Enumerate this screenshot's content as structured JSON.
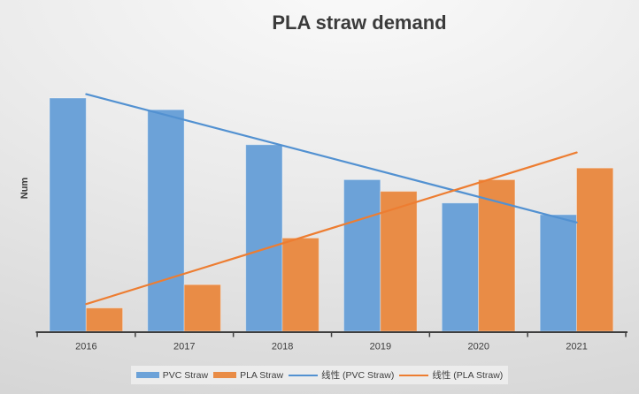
{
  "chart_data": {
    "type": "bar",
    "title": "PLA straw demand",
    "xlabel": "",
    "ylabel": "Num",
    "categories": [
      "2016",
      "2017",
      "2018",
      "2019",
      "2020",
      "2021"
    ],
    "series": [
      {
        "name": "PVC Straw",
        "kind": "bar",
        "color": "#6CA2D8",
        "values": [
          100,
          95,
          80,
          65,
          55,
          50
        ]
      },
      {
        "name": "PLA Straw",
        "kind": "bar",
        "color": "#E98C46",
        "values": [
          10,
          20,
          40,
          60,
          65,
          70
        ]
      },
      {
        "name": "线性 (PVC Straw)",
        "kind": "trendline",
        "source": "PVC Straw",
        "color": "#5291D1"
      },
      {
        "name": "线性 (PLA Straw)",
        "kind": "trendline",
        "source": "PLA Straw",
        "color": "#ED7D31"
      }
    ],
    "ylim": [
      0,
      115
    ],
    "grid": false,
    "legend_position": "bottom",
    "axis_color": "#3F3F3F",
    "tick_label_color": "#3F3F3F"
  }
}
